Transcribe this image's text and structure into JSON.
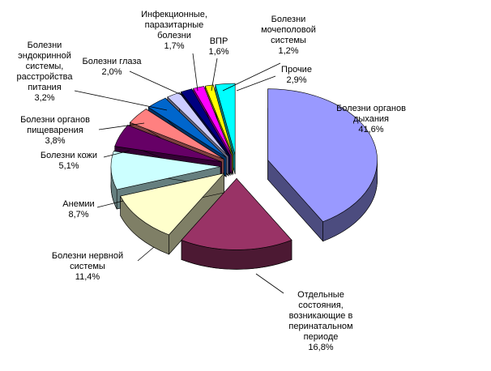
{
  "chart_data": {
    "type": "pie",
    "categories": [
      "Болезни органов\nдыхания",
      "Отдельные\nсостояния,\nвозникающие в\nперинатальном\nпериоде",
      "Болезни нервной\nсистемы",
      "Анемии",
      "Болезни кожи",
      "Болезни органов\nпищеварения",
      "Болезни\nэндокринной\nсистемы,\nрасстройства\nпитания",
      "Болезни глаза",
      "Инфекционные,\nпаразитарные\nболезни",
      "ВПР",
      "Болезни\nмочеполовой\nсистемы",
      "Прочие"
    ],
    "values": [
      41.6,
      16.8,
      11.4,
      8.7,
      5.1,
      3.8,
      3.2,
      2.0,
      1.7,
      1.6,
      1.2,
      2.9
    ],
    "value_labels": [
      "41,6%",
      "16,8%",
      "11,4%",
      "8,7%",
      "5,1%",
      "3,8%",
      "3,2%",
      "2,0%",
      "1,7%",
      "1,6%",
      "1,2%",
      "2,9%"
    ],
    "colors": [
      "#9999ff",
      "#993366",
      "#ffffcc",
      "#ccffff",
      "#660066",
      "#ff8080",
      "#0066cc",
      "#ccccff",
      "#000080",
      "#ff00ff",
      "#ffff00",
      "#00ffff"
    ]
  }
}
